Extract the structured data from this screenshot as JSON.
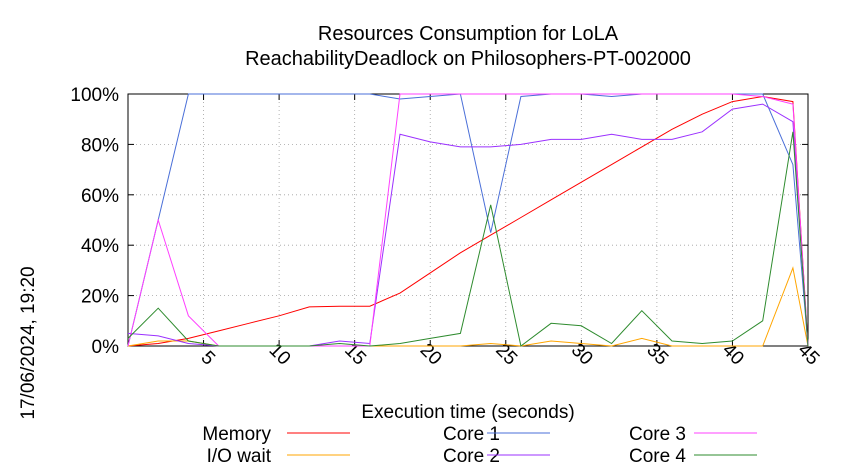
{
  "chart_data": {
    "type": "line",
    "title": "Resources Consumption for LoLA",
    "subtitle": "ReachabilityDeadlock on Philosophers-PT-002000",
    "xlabel": "Execution time (seconds)",
    "ylabel": "",
    "timestamp": "17/06/2024, 19:20",
    "xlim": [
      0,
      45
    ],
    "ylim": [
      0,
      100
    ],
    "x_ticks": [
      5,
      10,
      15,
      20,
      25,
      30,
      35,
      40,
      45
    ],
    "y_ticks": [
      0,
      20,
      40,
      60,
      80,
      100
    ],
    "y_tick_labels": [
      "0%",
      "20%",
      "40%",
      "60%",
      "80%",
      "100%"
    ],
    "grid": true,
    "legend_position": "bottom",
    "series": [
      {
        "name": "Memory",
        "color": "#ff0000",
        "points": [
          [
            0,
            0
          ],
          [
            2,
            1
          ],
          [
            4,
            3
          ],
          [
            6,
            6
          ],
          [
            8,
            9
          ],
          [
            10,
            12
          ],
          [
            12,
            15.5
          ],
          [
            14,
            15.8
          ],
          [
            16,
            15.8
          ],
          [
            18,
            21
          ],
          [
            20,
            29
          ],
          [
            22,
            37
          ],
          [
            24,
            44
          ],
          [
            26,
            51
          ],
          [
            28,
            58
          ],
          [
            30,
            65
          ],
          [
            32,
            72
          ],
          [
            34,
            79
          ],
          [
            36,
            86
          ],
          [
            38,
            92
          ],
          [
            40,
            97
          ],
          [
            42,
            99
          ],
          [
            44,
            97
          ],
          [
            45,
            0
          ]
        ]
      },
      {
        "name": "I/O wait",
        "color": "#ffa500",
        "points": [
          [
            0,
            0
          ],
          [
            2,
            2
          ],
          [
            4,
            2
          ],
          [
            6,
            0
          ],
          [
            8,
            0
          ],
          [
            10,
            0
          ],
          [
            12,
            0
          ],
          [
            14,
            0
          ],
          [
            16,
            0
          ],
          [
            18,
            0
          ],
          [
            20,
            0
          ],
          [
            22,
            0
          ],
          [
            24,
            1
          ],
          [
            26,
            0
          ],
          [
            28,
            2
          ],
          [
            30,
            1
          ],
          [
            32,
            0
          ],
          [
            34,
            3
          ],
          [
            36,
            0
          ],
          [
            38,
            0
          ],
          [
            40,
            0
          ],
          [
            42,
            0
          ],
          [
            44,
            31
          ],
          [
            45,
            0
          ]
        ]
      },
      {
        "name": "Core 1",
        "color": "#4a6fd8",
        "points": [
          [
            0,
            0
          ],
          [
            2,
            50
          ],
          [
            4,
            100
          ],
          [
            6,
            100
          ],
          [
            8,
            100
          ],
          [
            10,
            100
          ],
          [
            12,
            100
          ],
          [
            14,
            100
          ],
          [
            16,
            100
          ],
          [
            18,
            98
          ],
          [
            20,
            99
          ],
          [
            22,
            100
          ],
          [
            24,
            45
          ],
          [
            26,
            99
          ],
          [
            28,
            100
          ],
          [
            30,
            100
          ],
          [
            32,
            99
          ],
          [
            34,
            100
          ],
          [
            36,
            100
          ],
          [
            38,
            100
          ],
          [
            40,
            100
          ],
          [
            42,
            100
          ],
          [
            44,
            72
          ],
          [
            45,
            0
          ]
        ]
      },
      {
        "name": "Core 2",
        "color": "#9b30ff",
        "points": [
          [
            0,
            5
          ],
          [
            2,
            4
          ],
          [
            4,
            1
          ],
          [
            6,
            0
          ],
          [
            8,
            0
          ],
          [
            10,
            0
          ],
          [
            12,
            0
          ],
          [
            14,
            2
          ],
          [
            16,
            1
          ],
          [
            18,
            84
          ],
          [
            20,
            81
          ],
          [
            22,
            79
          ],
          [
            24,
            79
          ],
          [
            26,
            80
          ],
          [
            28,
            82
          ],
          [
            30,
            82
          ],
          [
            32,
            84
          ],
          [
            34,
            82
          ],
          [
            36,
            82
          ],
          [
            38,
            85
          ],
          [
            40,
            94
          ],
          [
            42,
            96
          ],
          [
            44,
            89
          ],
          [
            45,
            0
          ]
        ]
      },
      {
        "name": "Core 3",
        "color": "#ff40ff",
        "points": [
          [
            0,
            0
          ],
          [
            2,
            50
          ],
          [
            4,
            12
          ],
          [
            6,
            0
          ],
          [
            8,
            0
          ],
          [
            10,
            0
          ],
          [
            12,
            0
          ],
          [
            14,
            0
          ],
          [
            16,
            0
          ],
          [
            18,
            100
          ],
          [
            20,
            100
          ],
          [
            22,
            100
          ],
          [
            24,
            100
          ],
          [
            26,
            100
          ],
          [
            28,
            100
          ],
          [
            30,
            100
          ],
          [
            32,
            100
          ],
          [
            34,
            100
          ],
          [
            36,
            100
          ],
          [
            38,
            100
          ],
          [
            40,
            100
          ],
          [
            42,
            99
          ],
          [
            44,
            96
          ],
          [
            45,
            0
          ]
        ]
      },
      {
        "name": "Core 4",
        "color": "#2e8b2e",
        "points": [
          [
            0,
            3
          ],
          [
            2,
            15
          ],
          [
            4,
            2
          ],
          [
            6,
            0
          ],
          [
            8,
            0
          ],
          [
            10,
            0
          ],
          [
            12,
            0
          ],
          [
            14,
            1
          ],
          [
            16,
            0
          ],
          [
            18,
            1
          ],
          [
            20,
            3
          ],
          [
            22,
            5
          ],
          [
            24,
            56
          ],
          [
            26,
            0
          ],
          [
            28,
            9
          ],
          [
            30,
            8
          ],
          [
            32,
            1
          ],
          [
            34,
            14
          ],
          [
            36,
            2
          ],
          [
            38,
            1
          ],
          [
            40,
            2
          ],
          [
            42,
            10
          ],
          [
            44,
            85
          ],
          [
            45,
            0
          ]
        ]
      }
    ]
  }
}
